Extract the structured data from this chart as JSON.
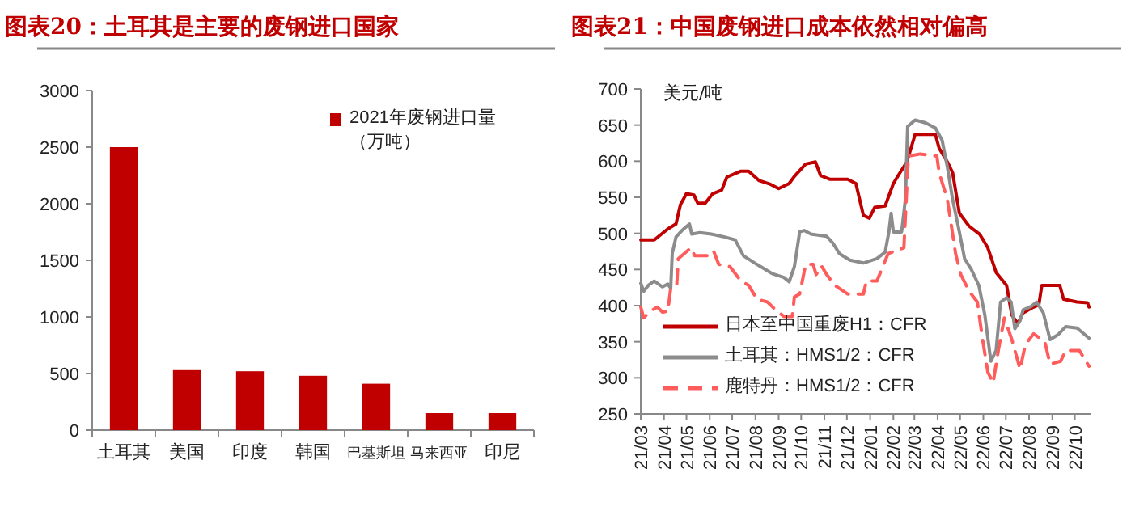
{
  "chart_data": [
    {
      "type": "bar",
      "title": "图表20：土耳其是主要的废钢进口国家",
      "categories": [
        "土耳其",
        "美国",
        "印度",
        "韩国",
        "巴基斯坦",
        "马来西亚",
        "印尼"
      ],
      "series": [
        {
          "name": "2021年废钢进口量（万吨）",
          "color": "#c00000",
          "values": [
            2500,
            530,
            520,
            480,
            410,
            150,
            150
          ]
        }
      ],
      "ylim": [
        0,
        3000
      ],
      "yticks": [
        0,
        500,
        1000,
        1500,
        2000,
        2500,
        3000
      ],
      "legend": "top right"
    },
    {
      "type": "line",
      "title": "图表21：中国废钢进口成本依然相对偏高",
      "ylabel": "美元/吨",
      "xlim": [
        "2021-03-01",
        "2022-10-22"
      ],
      "xticks": [
        {
          "value": "2021-03-01",
          "label": "21/03"
        },
        {
          "value": "2021-04-01",
          "label": "21/04"
        },
        {
          "value": "2021-05-01",
          "label": "21/05"
        },
        {
          "value": "2021-06-01",
          "label": "21/06"
        },
        {
          "value": "2021-07-01",
          "label": "21/07"
        },
        {
          "value": "2021-08-01",
          "label": "21/08"
        },
        {
          "value": "2021-09-01",
          "label": "21/09"
        },
        {
          "value": "2021-10-01",
          "label": "21/10"
        },
        {
          "value": "2021-11-01",
          "label": "21/11"
        },
        {
          "value": "2021-12-01",
          "label": "21/12"
        },
        {
          "value": "2022-01-01",
          "label": "22/01"
        },
        {
          "value": "2022-02-01",
          "label": "22/02"
        },
        {
          "value": "2022-03-01",
          "label": "22/03"
        },
        {
          "value": "2022-04-01",
          "label": "22/04"
        },
        {
          "value": "2022-05-01",
          "label": "22/05"
        },
        {
          "value": "2022-06-01",
          "label": "22/06"
        },
        {
          "value": "2022-07-01",
          "label": "22/07"
        },
        {
          "value": "2022-08-01",
          "label": "22/08"
        },
        {
          "value": "2022-09-01",
          "label": "22/09"
        },
        {
          "value": "2022-10-01",
          "label": "22/10"
        }
      ],
      "ylim": [
        250,
        700
      ],
      "yticks": [
        250,
        300,
        350,
        400,
        450,
        500,
        550,
        600,
        650,
        700
      ],
      "legend": "bottom left",
      "series": [
        {
          "name": "日本至中国重废H1：CFR",
          "color": "#c00000",
          "line_style": "solid",
          "x": [
            "2021-03-01",
            "2021-03-19",
            "2021-04-06",
            "2021-04-17",
            "2021-04-23",
            "2021-05-01",
            "2021-05-11",
            "2021-05-16",
            "2021-05-26",
            "2021-06-05",
            "2021-06-17",
            "2021-06-24",
            "2021-07-12",
            "2021-07-23",
            "2021-08-06",
            "2021-08-21",
            "2021-09-01",
            "2021-09-15",
            "2021-09-22",
            "2021-10-07",
            "2021-10-20",
            "2021-10-27",
            "2021-11-08",
            "2021-12-02",
            "2021-12-13",
            "2021-12-23",
            "2021-12-31",
            "2022-01-07",
            "2022-01-21",
            "2022-02-01",
            "2022-02-08",
            "2022-02-19",
            "2022-03-02",
            "2022-03-09",
            "2022-03-29",
            "2022-04-03",
            "2022-04-14",
            "2022-04-21",
            "2022-04-30",
            "2022-05-13",
            "2022-05-27",
            "2022-06-07",
            "2022-06-18",
            "2022-07-02",
            "2022-07-09",
            "2022-07-17",
            "2022-07-24",
            "2022-08-07",
            "2022-08-14",
            "2022-08-18",
            "2022-09-11",
            "2022-09-16",
            "2022-10-04",
            "2022-10-18",
            "2022-10-20"
          ],
          "values": [
            491,
            491,
            506,
            513,
            540,
            555,
            553,
            542,
            542,
            555,
            560,
            578,
            586,
            586,
            573,
            568,
            562,
            569,
            579,
            596,
            599,
            580,
            575,
            575,
            569,
            525,
            521,
            536,
            538,
            569,
            581,
            599,
            637,
            637,
            637,
            618,
            599,
            584,
            528,
            510,
            499,
            480,
            446,
            428,
            387,
            375,
            390,
            398,
            401,
            428,
            428,
            409,
            405,
            404,
            398
          ]
        },
        {
          "name": "土耳其：HMS1/2：CFR",
          "color": "#8c8c8c",
          "line_style": "solid",
          "x": [
            "2021-03-01",
            "2021-03-05",
            "2021-03-12",
            "2021-03-19",
            "2021-03-30",
            "2021-04-06",
            "2021-04-10",
            "2021-04-12",
            "2021-04-17",
            "2021-04-25",
            "2021-05-05",
            "2021-05-08",
            "2021-05-19",
            "2021-06-03",
            "2021-06-21",
            "2021-07-05",
            "2021-07-16",
            "2021-08-03",
            "2021-08-24",
            "2021-09-08",
            "2021-09-15",
            "2021-09-22",
            "2021-09-29",
            "2021-10-05",
            "2021-10-14",
            "2021-11-04",
            "2021-11-12",
            "2021-11-21",
            "2021-12-05",
            "2021-12-23",
            "2022-01-10",
            "2022-01-21",
            "2022-01-26",
            "2022-01-29",
            "2022-02-01",
            "2022-02-12",
            "2022-02-17",
            "2022-02-20",
            "2022-03-02",
            "2022-03-16",
            "2022-03-29",
            "2022-04-07",
            "2022-04-14",
            "2022-04-21",
            "2022-04-30",
            "2022-05-07",
            "2022-05-16",
            "2022-05-26",
            "2022-06-03",
            "2022-06-11",
            "2022-06-18",
            "2022-06-24",
            "2022-07-02",
            "2022-07-08",
            "2022-07-13",
            "2022-07-20",
            "2022-07-24",
            "2022-08-04",
            "2022-08-11",
            "2022-08-20",
            "2022-08-29",
            "2022-09-09",
            "2022-09-19",
            "2022-10-04",
            "2022-10-20"
          ],
          "values": [
            431,
            420,
            429,
            434,
            426,
            430,
            424,
            472,
            495,
            504,
            513,
            499,
            501,
            499,
            495,
            491,
            469,
            457,
            444,
            439,
            433,
            454,
            502,
            504,
            499,
            496,
            487,
            472,
            463,
            459,
            465,
            474,
            502,
            528,
            502,
            502,
            547,
            648,
            657,
            653,
            646,
            629,
            592,
            547,
            502,
            465,
            450,
            428,
            387,
            323,
            338,
            405,
            411,
            405,
            368,
            379,
            394,
            399,
            405,
            390,
            353,
            360,
            371,
            369,
            355
          ]
        },
        {
          "name": "鹿特丹：HMS1/2：CFR",
          "color": "#ff5c5c",
          "line_style": "dashed",
          "x": [
            "2021-03-01",
            "2021-03-05",
            "2021-03-12",
            "2021-03-23",
            "2021-03-30",
            "2021-04-06",
            "2021-04-10",
            "2021-04-18",
            "2021-04-20",
            "2021-04-28",
            "2021-05-07",
            "2021-05-12",
            "2021-05-30",
            "2021-06-06",
            "2021-06-13",
            "2021-06-28",
            "2021-07-12",
            "2021-07-23",
            "2021-08-03",
            "2021-08-17",
            "2021-08-28",
            "2021-09-08",
            "2021-09-19",
            "2021-09-22",
            "2021-09-29",
            "2021-10-07",
            "2021-10-17",
            "2021-10-21",
            "2021-10-28",
            "2021-11-04",
            "2021-11-15",
            "2021-12-02",
            "2021-12-23",
            "2021-12-27",
            "2022-01-10",
            "2022-01-25",
            "2022-02-15",
            "2022-02-21",
            "2022-03-09",
            "2022-03-31",
            "2022-04-03",
            "2022-04-14",
            "2022-04-25",
            "2022-05-02",
            "2022-05-13",
            "2022-05-24",
            "2022-05-31",
            "2022-06-07",
            "2022-06-14",
            "2022-06-21",
            "2022-06-29",
            "2022-07-09",
            "2022-07-20",
            "2022-07-27",
            "2022-08-07",
            "2022-08-22",
            "2022-08-29",
            "2022-09-12",
            "2022-09-19",
            "2022-10-07",
            "2022-10-20"
          ],
          "values": [
            398,
            383,
            391,
            398,
            391,
            392,
            424,
            428,
            465,
            472,
            480,
            469,
            469,
            476,
            457,
            454,
            435,
            428,
            409,
            405,
            394,
            385,
            385,
            412,
            416,
            457,
            457,
            443,
            455,
            443,
            428,
            416,
            416,
            434,
            434,
            472,
            480,
            607,
            610,
            607,
            584,
            547,
            472,
            443,
            420,
            405,
            353,
            308,
            293,
            338,
            383,
            353,
            312,
            346,
            361,
            350,
            319,
            323,
            338,
            338,
            316
          ]
        }
      ]
    }
  ]
}
